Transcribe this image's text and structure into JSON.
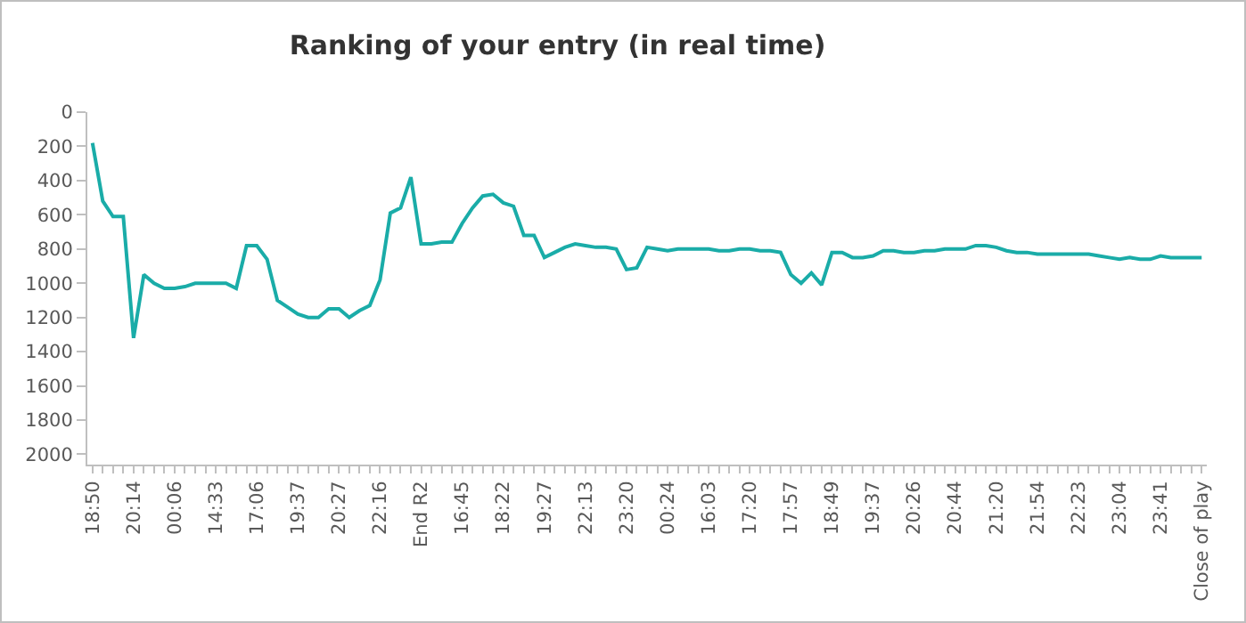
{
  "chart_data": {
    "type": "line",
    "title": "Ranking of your entry (in real time)",
    "categories": [
      "18:50",
      null,
      null,
      null,
      "20:14",
      null,
      null,
      null,
      "00:06",
      null,
      null,
      null,
      "14:33",
      null,
      null,
      null,
      "17:06",
      null,
      null,
      null,
      "19:37",
      null,
      null,
      null,
      "20:27",
      null,
      null,
      null,
      "22:16",
      null,
      null,
      null,
      "End R2",
      null,
      null,
      null,
      "16:45",
      null,
      null,
      null,
      "18:22",
      null,
      null,
      null,
      "19:27",
      null,
      null,
      null,
      "22:13",
      null,
      null,
      null,
      "23:20",
      null,
      null,
      null,
      "00:24",
      null,
      null,
      null,
      "16:03",
      null,
      null,
      null,
      "17:20",
      null,
      null,
      null,
      "17:57",
      null,
      null,
      null,
      "18:49",
      null,
      null,
      null,
      "19:37",
      null,
      null,
      null,
      "20:26",
      null,
      null,
      null,
      "20:44",
      null,
      null,
      null,
      "21:20",
      null,
      null,
      null,
      "21:54",
      null,
      null,
      null,
      "22:23",
      null,
      null,
      null,
      "23:04",
      null,
      null,
      null,
      "23:41",
      null,
      null,
      null,
      "Close of play"
    ],
    "series": [
      {
        "color": "#1aaca8",
        "values": [
          180,
          520,
          610,
          610,
          1320,
          950,
          1000,
          1030,
          1030,
          1020,
          1000,
          1000,
          1000,
          1000,
          1030,
          780,
          780,
          860,
          1100,
          1140,
          1180,
          1200,
          1200,
          1150,
          1150,
          1200,
          1160,
          1130,
          980,
          590,
          560,
          380,
          770,
          770,
          760,
          760,
          650,
          560,
          490,
          480,
          530,
          550,
          720,
          720,
          850,
          820,
          790,
          770,
          780,
          790,
          790,
          800,
          920,
          910,
          790,
          800,
          810,
          800,
          800,
          800,
          800,
          810,
          810,
          800,
          800,
          810,
          810,
          820,
          950,
          1000,
          940,
          1010,
          820,
          820,
          850,
          850,
          840,
          810,
          810,
          820,
          820,
          810,
          810,
          800,
          800,
          800,
          780,
          780,
          790,
          810,
          820,
          820,
          830,
          830,
          830,
          830,
          830,
          830,
          840,
          850,
          860,
          850,
          860,
          860,
          840,
          850,
          850,
          850,
          850
        ]
      }
    ],
    "ylim": [
      2060,
      0
    ],
    "yticks": [
      0,
      200,
      400,
      600,
      800,
      1000,
      1200,
      1400,
      1600,
      1800,
      2000
    ],
    "grid": false,
    "marker": "none",
    "line_style": "solid"
  }
}
